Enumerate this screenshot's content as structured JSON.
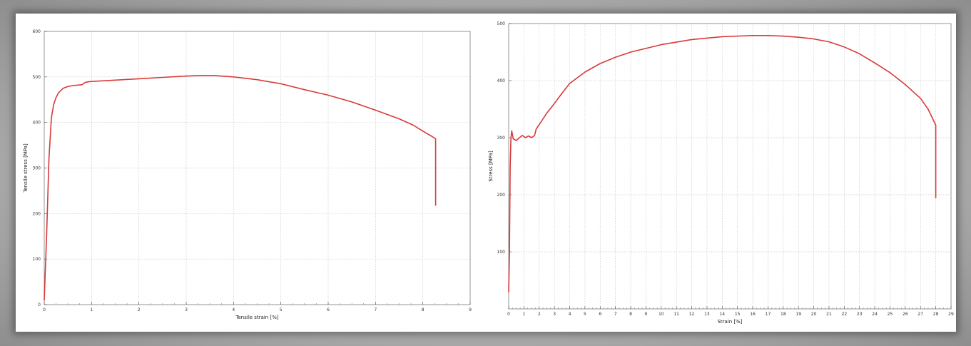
{
  "chart_data": [
    {
      "type": "line",
      "xlabel": "Tensile strain [%]",
      "ylabel": "Tensile stress [MPa]",
      "xlim": [
        0,
        9
      ],
      "ylim": [
        0,
        600
      ],
      "x_ticks": [
        0,
        1,
        2,
        3,
        4,
        5,
        6,
        7,
        8,
        9
      ],
      "y_ticks": [
        0,
        100,
        200,
        300,
        400,
        500,
        600
      ],
      "grid": true,
      "series": [
        {
          "color": "#d83a3a",
          "x": [
            0,
            0.05,
            0.1,
            0.15,
            0.2,
            0.25,
            0.3,
            0.4,
            0.5,
            0.6,
            0.8,
            0.85,
            0.9,
            1.0,
            1.5,
            2.0,
            2.5,
            3.0,
            3.3,
            3.6,
            4.0,
            4.5,
            5.0,
            5.5,
            6.0,
            6.5,
            7.0,
            7.5,
            7.8,
            8.0,
            8.2,
            8.27,
            8.27,
            8.27
          ],
          "y": [
            10,
            150,
            320,
            410,
            440,
            455,
            465,
            475,
            479,
            481,
            483,
            487,
            489,
            490,
            493,
            496,
            499,
            502,
            503,
            503,
            500,
            494,
            485,
            472,
            460,
            445,
            427,
            408,
            394,
            381,
            369,
            364,
            300,
            218
          ]
        }
      ]
    },
    {
      "type": "line",
      "xlabel": "Strain [%]",
      "ylabel": "Stress [MPa]",
      "xlim": [
        0,
        29
      ],
      "ylim": [
        0,
        500
      ],
      "x_ticks": [
        0,
        1,
        2,
        3,
        4,
        5,
        6,
        7,
        8,
        9,
        10,
        11,
        12,
        13,
        14,
        15,
        16,
        17,
        18,
        19,
        20,
        21,
        22,
        23,
        24,
        25,
        26,
        27,
        28,
        29
      ],
      "y_ticks": [
        100,
        200,
        300,
        400,
        500
      ],
      "grid": true,
      "series": [
        {
          "color": "#d83a3a",
          "x": [
            0,
            0.05,
            0.1,
            0.15,
            0.2,
            0.3,
            0.5,
            0.7,
            0.9,
            1.1,
            1.3,
            1.5,
            1.7,
            1.8,
            2.0,
            2.5,
            3.0,
            3.5,
            4.0,
            5.0,
            6.0,
            7.0,
            8.0,
            10.0,
            12.0,
            14.0,
            16.0,
            17.0,
            18.0,
            19.0,
            20.0,
            21.0,
            22.0,
            23.0,
            24.0,
            25.0,
            26.0,
            27.0,
            27.5,
            28.0,
            28.0,
            28.0
          ],
          "y": [
            30,
            100,
            250,
            300,
            312,
            298,
            295,
            300,
            304,
            300,
            303,
            300,
            304,
            315,
            323,
            343,
            360,
            378,
            395,
            415,
            430,
            441,
            450,
            463,
            472,
            477,
            479,
            479,
            478,
            476,
            473,
            468,
            459,
            447,
            431,
            414,
            393,
            369,
            350,
            322,
            260,
            195
          ]
        }
      ]
    }
  ]
}
